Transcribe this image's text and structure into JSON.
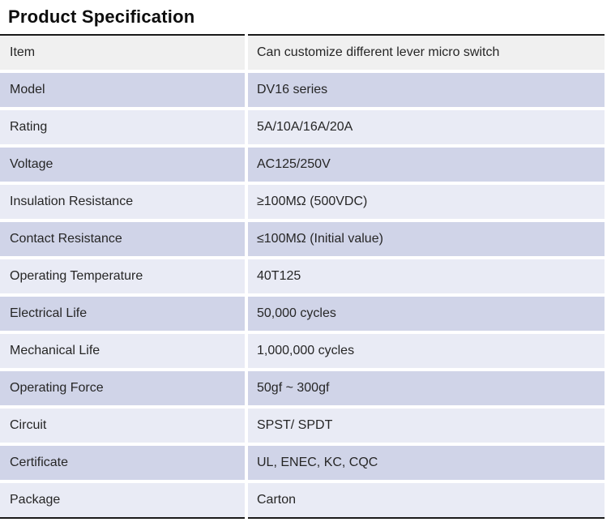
{
  "title": "Product Specification",
  "table": {
    "rows": [
      {
        "label": "Item",
        "value": "Can customize different lever micro switch"
      },
      {
        "label": "Model",
        "value": "DV16 series"
      },
      {
        "label": "Rating",
        "value": "5A/10A/16A/20A"
      },
      {
        "label": "Voltage",
        "value": "AC125/250V"
      },
      {
        "label": "Insulation Resistance",
        "value": "≥100MΩ (500VDC)"
      },
      {
        "label": "Contact Resistance",
        "value": "≤100MΩ (Initial value)"
      },
      {
        "label": "Operating Temperature",
        "value": "40T125"
      },
      {
        "label": "Electrical Life",
        "value": "50,000 cycles"
      },
      {
        "label": "Mechanical Life",
        "value": "1,000,000 cycles"
      },
      {
        "label": "Operating Force",
        "value": "50gf ~ 300gf"
      },
      {
        "label": "Circuit",
        "value": "SPST/ SPDT"
      },
      {
        "label": "Certificate",
        "value": "UL, ENEC, KC, CQC"
      },
      {
        "label": "Package",
        "value": "Carton"
      }
    ]
  },
  "colors": {
    "row_gray": "#f0f0f0",
    "row_dark_lavender": "#d0d4e8",
    "row_light_lavender": "#e9ebf5",
    "rule": "#1a1a1a",
    "text": "#262626"
  }
}
